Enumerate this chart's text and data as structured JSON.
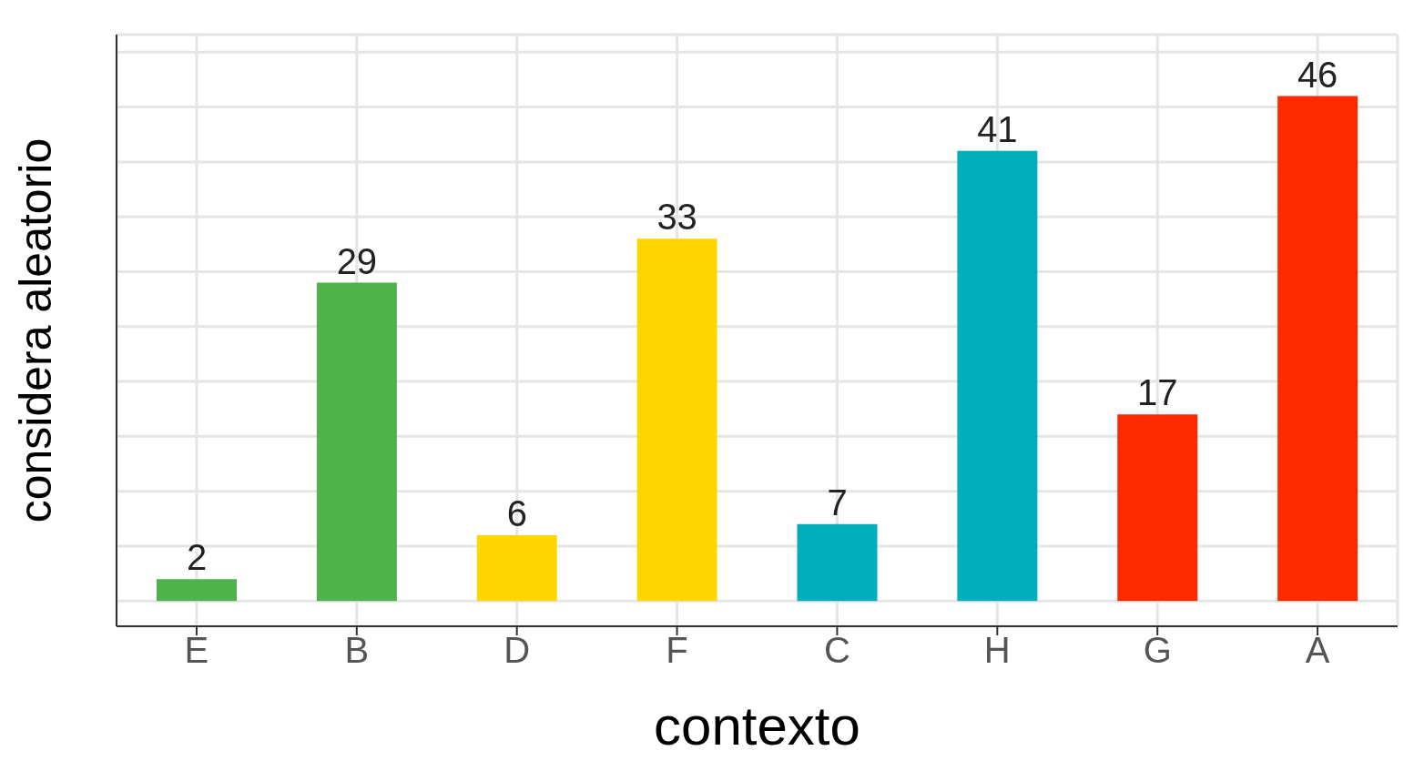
{
  "chart_data": {
    "type": "bar",
    "xlabel": "contexto",
    "ylabel": "considera aleatorio",
    "categories": [
      "E",
      "B",
      "D",
      "F",
      "C",
      "H",
      "G",
      "A"
    ],
    "values": [
      2,
      29,
      6,
      33,
      7,
      41,
      17,
      46
    ],
    "colors": [
      "#4db34a",
      "#4db34a",
      "#ffd600",
      "#ffd600",
      "#00afbb",
      "#00afbb",
      "#ff2a00",
      "#ff2a00"
    ],
    "ylim": [
      -2.3,
      51.6
    ],
    "yticks": [
      {
        "value": 0,
        "label": null
      },
      {
        "value": 5,
        "label": null
      },
      {
        "value": 10,
        "label": null
      },
      {
        "value": 15,
        "label": null
      },
      {
        "value": 20,
        "label": null
      },
      {
        "value": 25,
        "label": null
      },
      {
        "value": 30,
        "label": null
      },
      {
        "value": 35,
        "label": null
      },
      {
        "value": 40,
        "label": null
      },
      {
        "value": 45,
        "label": null
      },
      {
        "value": 50,
        "label": null
      }
    ],
    "grid": true,
    "tick_labels": "x",
    "data_labels": true
  }
}
